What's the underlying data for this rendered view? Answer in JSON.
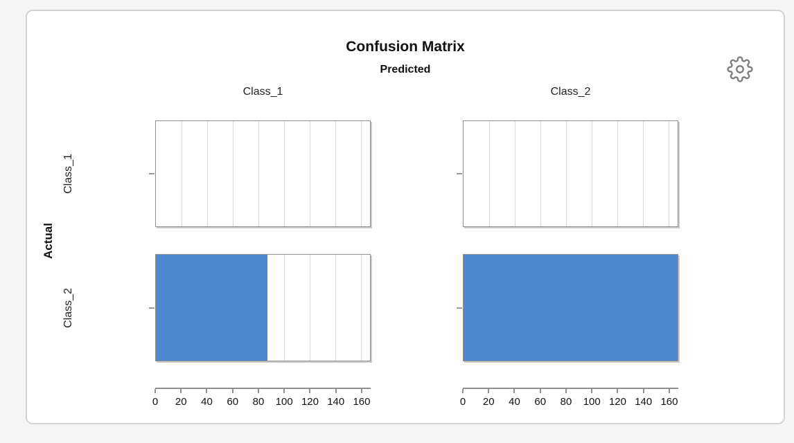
{
  "page": {
    "background": "#f5f5f6"
  },
  "card": {
    "border_color": "#d2d2d2",
    "background": "#ffffff"
  },
  "controls": {
    "settings_icon": "gear",
    "settings_color": "#7d7d7d"
  },
  "chart_data": {
    "type": "bar",
    "title": "Confusion Matrix",
    "col_axis_title": "Predicted",
    "row_axis_title": "Actual",
    "columns": [
      "Class_1",
      "Class_2"
    ],
    "rows": [
      "Class_1",
      "Class_2"
    ],
    "matrix": [
      [
        0,
        0
      ],
      [
        87,
        167
      ]
    ],
    "series": [
      {
        "name": "Actual Class_1",
        "values": [
          0,
          0
        ]
      },
      {
        "name": "Actual Class_2",
        "values": [
          87,
          167
        ]
      }
    ],
    "xlim": [
      0,
      167
    ],
    "x_ticks": [
      0,
      20,
      40,
      60,
      80,
      100,
      120,
      140,
      160
    ],
    "bar_color": "#4C89CE",
    "grid": true,
    "gridline_color": "#d9d9d9",
    "panel_border_color": "#8f8f8f",
    "axis_color": "#8f8f8f",
    "legend": "none"
  }
}
